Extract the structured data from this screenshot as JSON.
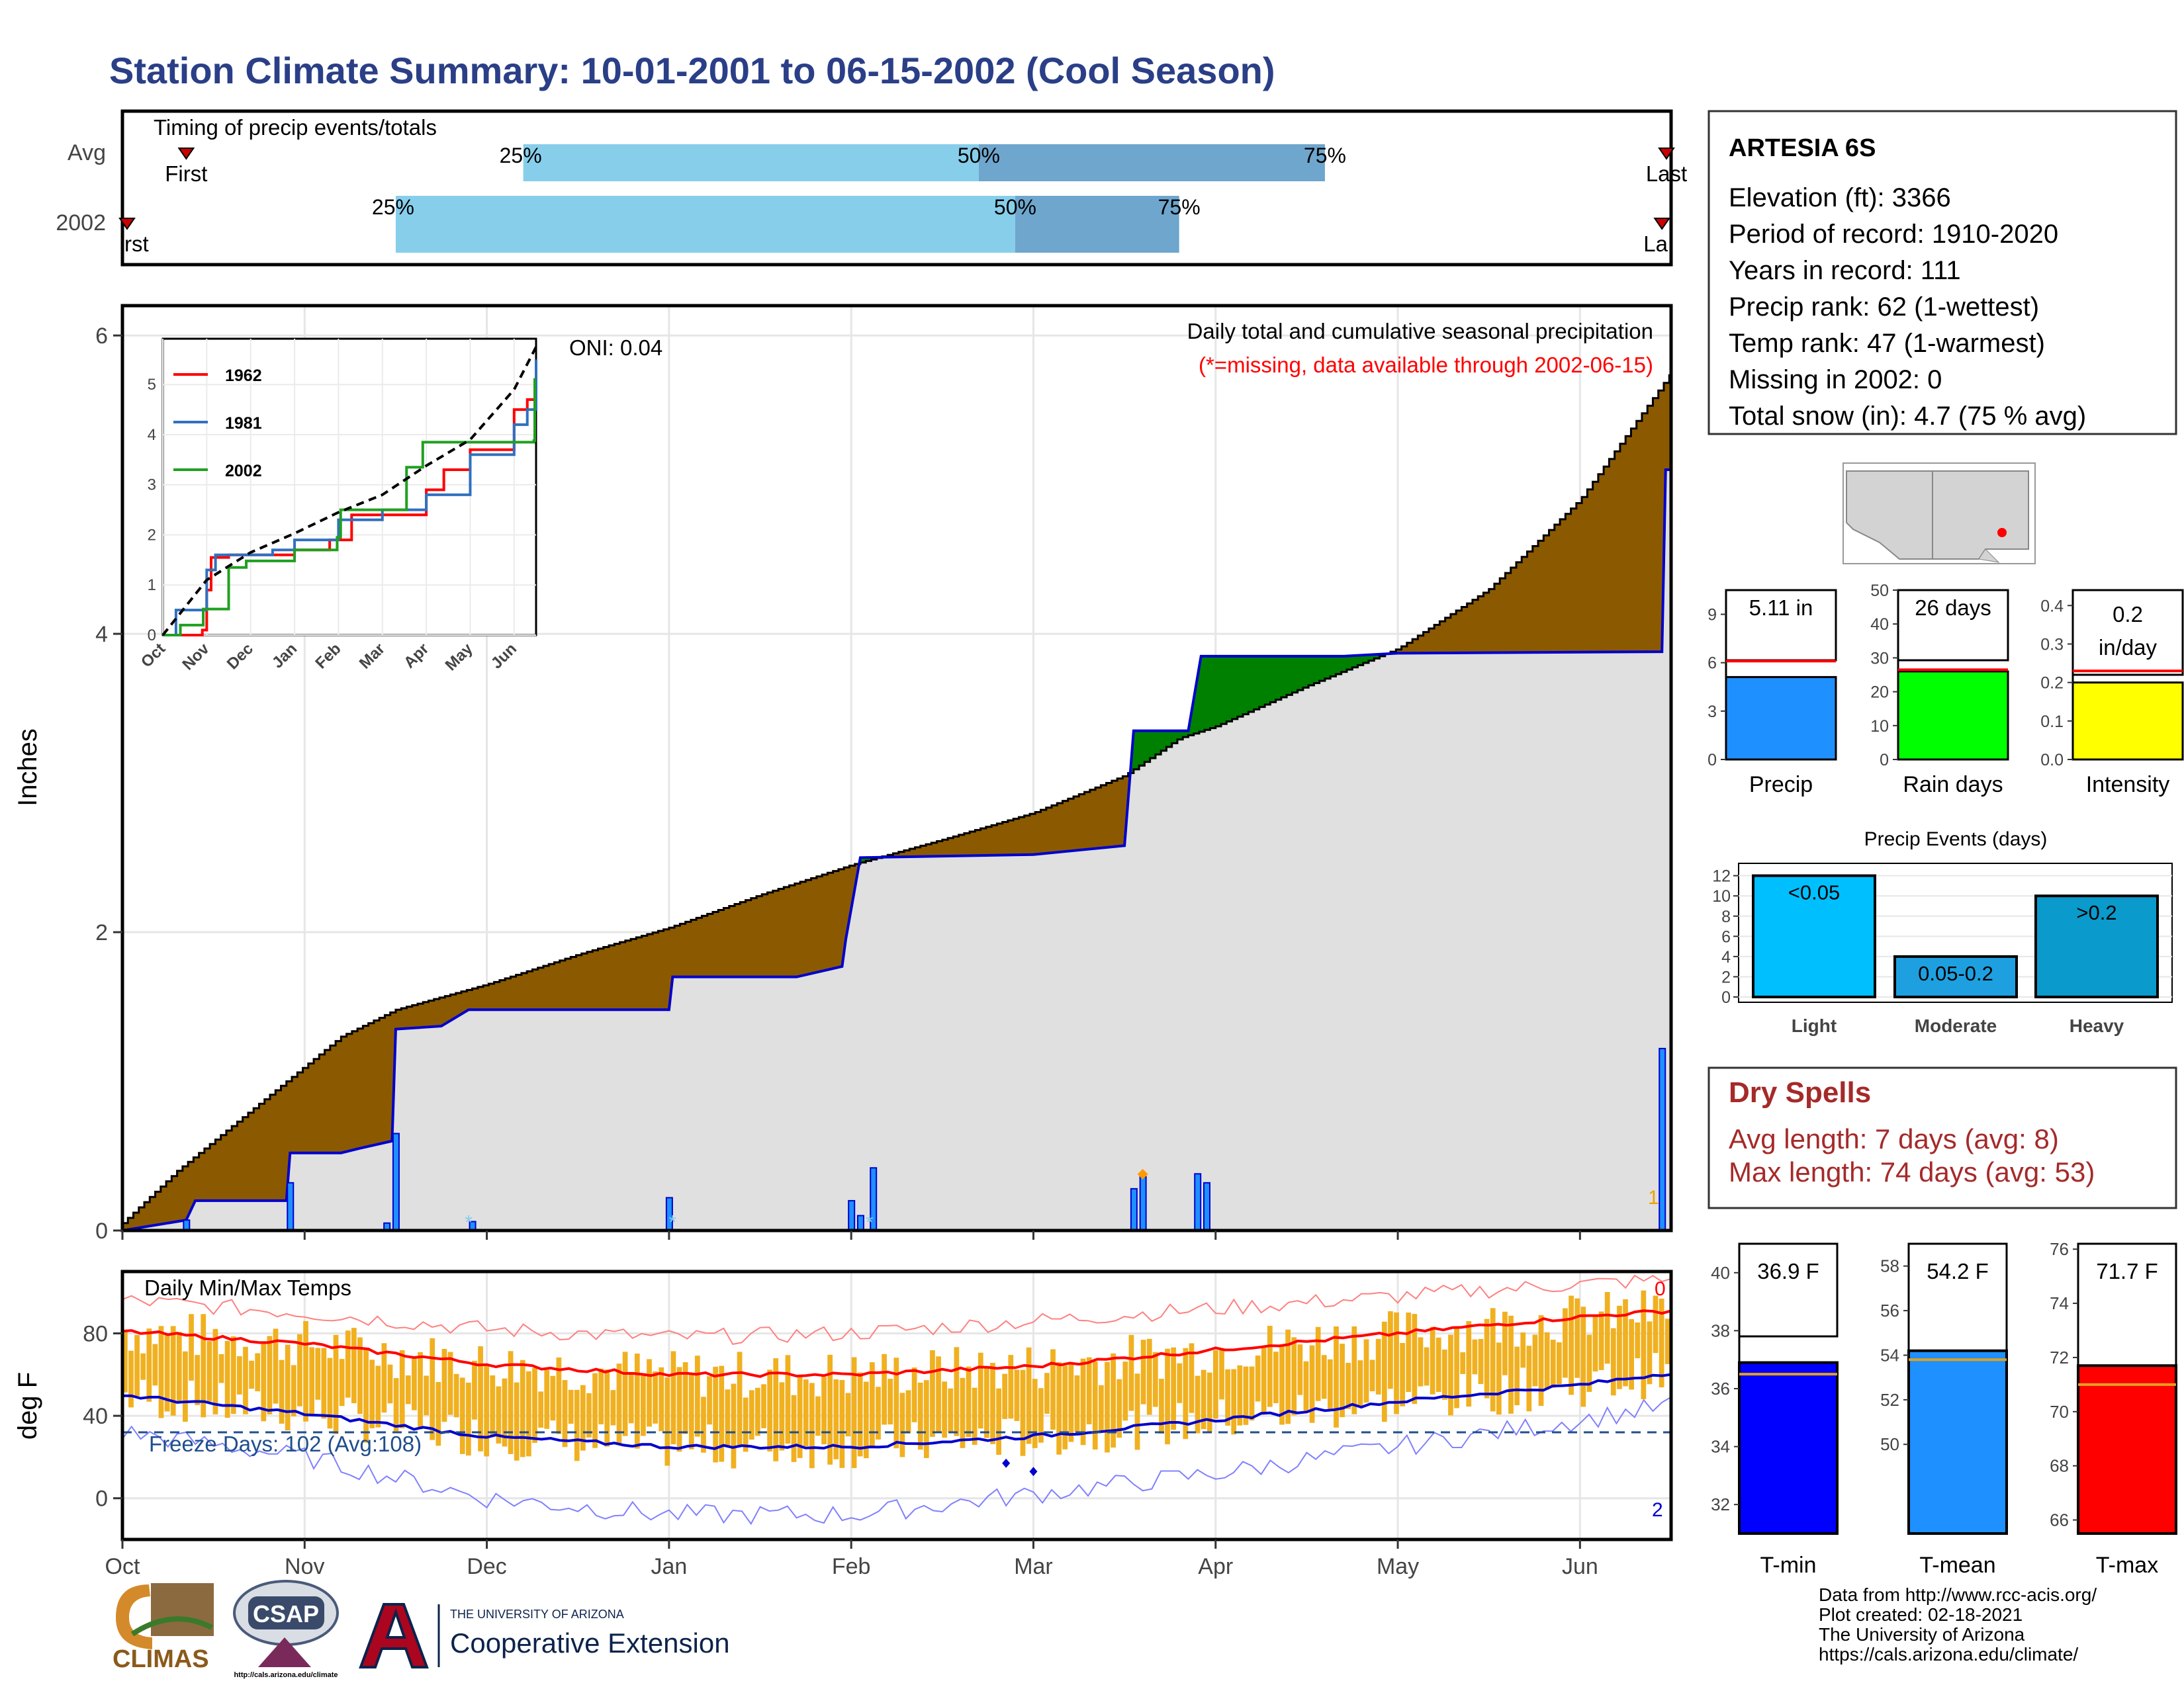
{
  "title": "Station Climate Summary: 10-01-2001 to 06-15-2002 (Cool Season)",
  "colors": {
    "title": "#2a3f87",
    "brown": "#8b5a00",
    "green": "#008000",
    "gray_fill": "#e0e0e0",
    "blue_line": "#0000cd",
    "light_blue": "#87ceeb",
    "mid_blue": "#6ea6cd",
    "orange": "#f0b020",
    "red": "#ff0000",
    "dry_red": "#a52a2a"
  },
  "timing": {
    "title": "Timing of precip events/totals",
    "rows": [
      {
        "label": "Avg",
        "first_label": "First",
        "last_label": "Last",
        "p25": "25%",
        "p50": "50%",
        "p75": "75%"
      },
      {
        "label": "2002",
        "first_label": "First",
        "last_label": "Last",
        "p25": "25%",
        "p50": "50%",
        "p75": "75%"
      }
    ]
  },
  "station": {
    "name": "ARTESIA 6S",
    "lines": [
      "Elevation (ft): 3366",
      "Period of record: 1910-2020",
      "Years in record: 111",
      "Precip rank: 62 (1-wettest)",
      "Temp rank: 47 (1-warmest)",
      "Missing in 2002: 0",
      "Total snow (in): 4.7 (75 % avg)"
    ]
  },
  "precip_panel": {
    "header": "Daily total and cumulative seasonal precipitation",
    "note": "(*=missing, data available through 2002-06-15)",
    "oni": "ONI: 0.04",
    "ylabel": "Inches",
    "yticks": [
      "0",
      "2",
      "4",
      "6"
    ],
    "corner_label": "1"
  },
  "inset": {
    "legend": [
      "1962",
      "1981",
      "2002"
    ],
    "yticks": [
      "0",
      "1",
      "2",
      "3",
      "4",
      "5"
    ],
    "xticks": [
      "Oct",
      "Nov",
      "Dec",
      "Jan",
      "Feb",
      "Mar",
      "Apr",
      "May",
      "Jun"
    ]
  },
  "temp_panel": {
    "title": "Daily Min/Max Temps",
    "ylabel": "deg F",
    "yticks": [
      "0",
      "40",
      "80"
    ],
    "freeze": "Freeze Days: 102 (Avg:108)",
    "corner_top": "0",
    "corner_bottom": "2"
  },
  "months": [
    "Oct",
    "Nov",
    "Dec",
    "Jan",
    "Feb",
    "Mar",
    "Apr",
    "May",
    "Jun"
  ],
  "mini_bars": [
    {
      "label": "Precip",
      "value_text": "5.11 in",
      "yticks": [
        "0",
        "3",
        "6",
        "9"
      ]
    },
    {
      "label": "Rain days",
      "value_text": "26 days",
      "yticks": [
        "0",
        "10",
        "20",
        "30",
        "40",
        "50"
      ]
    },
    {
      "label": "Intensity",
      "value_text": "0.2",
      "value_text2": "in/day",
      "yticks": [
        "0.0",
        "0.1",
        "0.2",
        "0.3",
        "0.4"
      ]
    }
  ],
  "events": {
    "title": "Precip Events (days)",
    "yticks": [
      "0",
      "2",
      "4",
      "6",
      "8",
      "10",
      "12"
    ],
    "bars": [
      {
        "label": "Light",
        "value_text": "<0.05"
      },
      {
        "label": "Moderate",
        "value_text": "0.05-0.2"
      },
      {
        "label": "Heavy",
        "value_text": ">0.2"
      }
    ]
  },
  "dry_spells": {
    "title": "Dry Spells",
    "avg": "Avg length: 7 days (avg: 8)",
    "max": "Max length: 74 days (avg: 53)"
  },
  "temp_bars": [
    {
      "label": "T-min",
      "value_text": "36.9 F",
      "yticks": [
        "32",
        "34",
        "36",
        "38",
        "40"
      ]
    },
    {
      "label": "T-mean",
      "value_text": "54.2 F",
      "yticks": [
        "50",
        "52",
        "54",
        "56",
        "58"
      ]
    },
    {
      "label": "T-max",
      "value_text": "71.7 F",
      "yticks": [
        "66",
        "68",
        "70",
        "72",
        "74",
        "76"
      ]
    }
  ],
  "credits": [
    "Data from http://www.rcc-acis.org/",
    "Plot created: 02-18-2021",
    "The University of Arizona",
    "https://cals.arizona.edu/climate/"
  ],
  "logos": {
    "climas": "CLIMAS",
    "csap": "CSAP",
    "csap_url": "http://cals.arizona.edu/climate",
    "ua_line1": "THE UNIVERSITY OF ARIZONA",
    "ua_line2": "Cooperative Extension"
  },
  "chart_data": [
    {
      "type": "bar",
      "name_ref": "timing",
      "x_unit": "month",
      "rows": [
        {
          "row": "Avg",
          "first": 0.35,
          "p25": 2.2,
          "p50": 4.7,
          "p75": 6.6,
          "last": 8.5
        },
        {
          "row": "2002",
          "first": 0.0,
          "p25": 1.5,
          "p50": 4.9,
          "p75": 5.8,
          "last": 8.45
        }
      ]
    },
    {
      "type": "area",
      "name_ref": "precip_panel",
      "x_unit": "month (0 = Oct 1)",
      "xlim": [
        0,
        8.5
      ],
      "ylim": [
        0,
        6.2
      ],
      "avg_cumulative": [
        [
          0,
          0.05
        ],
        [
          0.3,
          0.4
        ],
        [
          0.6,
          0.7
        ],
        [
          1,
          1.1
        ],
        [
          1.2,
          1.3
        ],
        [
          1.5,
          1.48
        ],
        [
          2,
          1.65
        ],
        [
          2.5,
          1.85
        ],
        [
          3,
          2.03
        ],
        [
          3.5,
          2.25
        ],
        [
          4,
          2.45
        ],
        [
          4.5,
          2.62
        ],
        [
          5,
          2.8
        ],
        [
          5.5,
          3.05
        ],
        [
          5.8,
          3.3
        ],
        [
          6,
          3.38
        ],
        [
          6.5,
          3.65
        ],
        [
          7,
          3.9
        ],
        [
          7.5,
          4.3
        ],
        [
          8,
          4.9
        ],
        [
          8.5,
          5.75
        ]
      ],
      "season_2002_cumulative": [
        [
          0,
          0
        ],
        [
          0.35,
          0.07
        ],
        [
          0.4,
          0.2
        ],
        [
          0.9,
          0.2
        ],
        [
          0.92,
          0.52
        ],
        [
          1.2,
          0.52
        ],
        [
          1.3,
          0.55
        ],
        [
          1.48,
          0.6
        ],
        [
          1.5,
          1.35
        ],
        [
          1.75,
          1.37
        ],
        [
          1.9,
          1.48
        ],
        [
          3.0,
          1.48
        ],
        [
          3.02,
          1.7
        ],
        [
          3.7,
          1.7
        ],
        [
          3.95,
          1.77
        ],
        [
          3.97,
          1.95
        ],
        [
          4.05,
          2.5
        ],
        [
          5.0,
          2.52
        ],
        [
          5.5,
          2.58
        ],
        [
          5.55,
          3.35
        ],
        [
          5.85,
          3.35
        ],
        [
          5.92,
          3.85
        ],
        [
          6.7,
          3.85
        ],
        [
          7.0,
          3.87
        ],
        [
          8.45,
          3.88
        ],
        [
          8.47,
          5.1
        ],
        [
          8.5,
          5.1
        ]
      ],
      "daily_precip": [
        [
          0.35,
          0.07
        ],
        [
          0.92,
          0.32
        ],
        [
          1.45,
          0.05
        ],
        [
          1.5,
          0.65
        ],
        [
          1.92,
          0.06
        ],
        [
          3.0,
          0.22
        ],
        [
          4.0,
          0.2
        ],
        [
          4.05,
          0.1
        ],
        [
          4.12,
          0.42
        ],
        [
          5.55,
          0.28
        ],
        [
          5.6,
          0.36
        ],
        [
          5.9,
          0.38
        ],
        [
          5.95,
          0.32
        ],
        [
          8.45,
          1.22
        ]
      ]
    },
    {
      "type": "line",
      "name_ref": "inset",
      "x_unit": "month (0 = Oct 1)",
      "ylim": [
        0,
        5.5
      ],
      "series": [
        {
          "name": "1962",
          "values": [
            [
              0,
              0
            ],
            [
              0.9,
              0.1
            ],
            [
              1.0,
              0.9
            ],
            [
              1.1,
              1.55
            ],
            [
              1.5,
              1.6
            ],
            [
              3.0,
              1.7
            ],
            [
              3.8,
              1.9
            ],
            [
              4.3,
              2.4
            ],
            [
              6.0,
              2.9
            ],
            [
              6.4,
              3.3
            ],
            [
              7.0,
              3.7
            ],
            [
              8.0,
              4.5
            ],
            [
              8.3,
              4.7
            ],
            [
              8.5,
              5.3
            ]
          ]
        },
        {
          "name": "1981",
          "values": [
            [
              0,
              0
            ],
            [
              0.3,
              0.5
            ],
            [
              0.6,
              0.5
            ],
            [
              1.0,
              1.3
            ],
            [
              1.2,
              1.6
            ],
            [
              2.5,
              1.7
            ],
            [
              3.0,
              1.9
            ],
            [
              4.0,
              2.3
            ],
            [
              5.0,
              2.5
            ],
            [
              6.0,
              2.8
            ],
            [
              7.0,
              3.6
            ],
            [
              8.0,
              4.2
            ],
            [
              8.3,
              4.5
            ],
            [
              8.5,
              5.5
            ]
          ]
        },
        {
          "name": "2002",
          "values": [
            [
              0,
              0
            ],
            [
              0.4,
              0.2
            ],
            [
              0.92,
              0.52
            ],
            [
              1.5,
              1.35
            ],
            [
              1.9,
              1.48
            ],
            [
              3.0,
              1.7
            ],
            [
              3.97,
              1.95
            ],
            [
              4.05,
              2.5
            ],
            [
              5.55,
              3.35
            ],
            [
              5.92,
              3.85
            ],
            [
              8.45,
              3.88
            ],
            [
              8.47,
              5.1
            ],
            [
              8.5,
              5.1
            ]
          ]
        },
        {
          "name": "avg",
          "values": [
            [
              0,
              0
            ],
            [
              1,
              1.1
            ],
            [
              2,
              1.65
            ],
            [
              3,
              2.03
            ],
            [
              4,
              2.45
            ],
            [
              5,
              2.8
            ],
            [
              6,
              3.38
            ],
            [
              7,
              3.9
            ],
            [
              8,
              4.9
            ],
            [
              8.5,
              5.75
            ]
          ]
        }
      ]
    },
    {
      "type": "line",
      "name_ref": "temp_panel",
      "x_unit": "month (0 = Oct 1)",
      "ylim": [
        -20,
        110
      ],
      "series": [
        {
          "name": "avg_max",
          "values": [
            [
              0,
              81
            ],
            [
              1,
              75
            ],
            [
              2,
              65
            ],
            [
              3,
              60
            ],
            [
              4,
              60
            ],
            [
              5,
              64
            ],
            [
              6,
              72
            ],
            [
              7,
              80
            ],
            [
              8,
              88
            ],
            [
              8.5,
              91
            ]
          ]
        },
        {
          "name": "avg_min",
          "values": [
            [
              0,
              50
            ],
            [
              1,
              41
            ],
            [
              2,
              30
            ],
            [
              3,
              25
            ],
            [
              4,
              25
            ],
            [
              5,
              30
            ],
            [
              6,
              38
            ],
            [
              7,
              47
            ],
            [
              8,
              55
            ],
            [
              8.5,
              61
            ]
          ]
        },
        {
          "name": "record_max",
          "values": [
            [
              0,
              96
            ],
            [
              1,
              90
            ],
            [
              2,
              82
            ],
            [
              3,
              78
            ],
            [
              4,
              80
            ],
            [
              5,
              86
            ],
            [
              6,
              92
            ],
            [
              7,
              98
            ],
            [
              8,
              104
            ],
            [
              8.5,
              106
            ]
          ]
        },
        {
          "name": "record_min",
          "values": [
            [
              0,
              32
            ],
            [
              1,
              20
            ],
            [
              2,
              0
            ],
            [
              3,
              -8
            ],
            [
              4,
              -8
            ],
            [
              5,
              2
            ],
            [
              6,
              12
            ],
            [
              7,
              25
            ],
            [
              8,
              38
            ],
            [
              8.5,
              45
            ]
          ]
        }
      ],
      "freeze_line": 32
    },
    {
      "type": "bar",
      "name_ref": "mini_bars",
      "categories": [
        "Precip",
        "Rain days",
        "Intensity"
      ],
      "values": [
        5.11,
        26,
        0.2
      ],
      "averages": [
        6.1,
        26.5,
        0.23
      ],
      "ylims": [
        [
          0,
          10.5
        ],
        [
          0,
          50
        ],
        [
          0,
          0.44
        ]
      ]
    },
    {
      "type": "bar",
      "name_ref": "events",
      "categories": [
        "Light",
        "Moderate",
        "Heavy"
      ],
      "values": [
        12,
        4,
        10
      ],
      "ylim": [
        0,
        12.5
      ]
    },
    {
      "type": "bar",
      "name_ref": "temp_bars",
      "categories": [
        "T-min",
        "T-mean",
        "T-max"
      ],
      "values": [
        36.9,
        54.2,
        71.7
      ],
      "averages": [
        36.5,
        53.8,
        71.0
      ],
      "ylims": [
        [
          31,
          41
        ],
        [
          46,
          59
        ],
        [
          65.5,
          76.2
        ]
      ]
    }
  ]
}
